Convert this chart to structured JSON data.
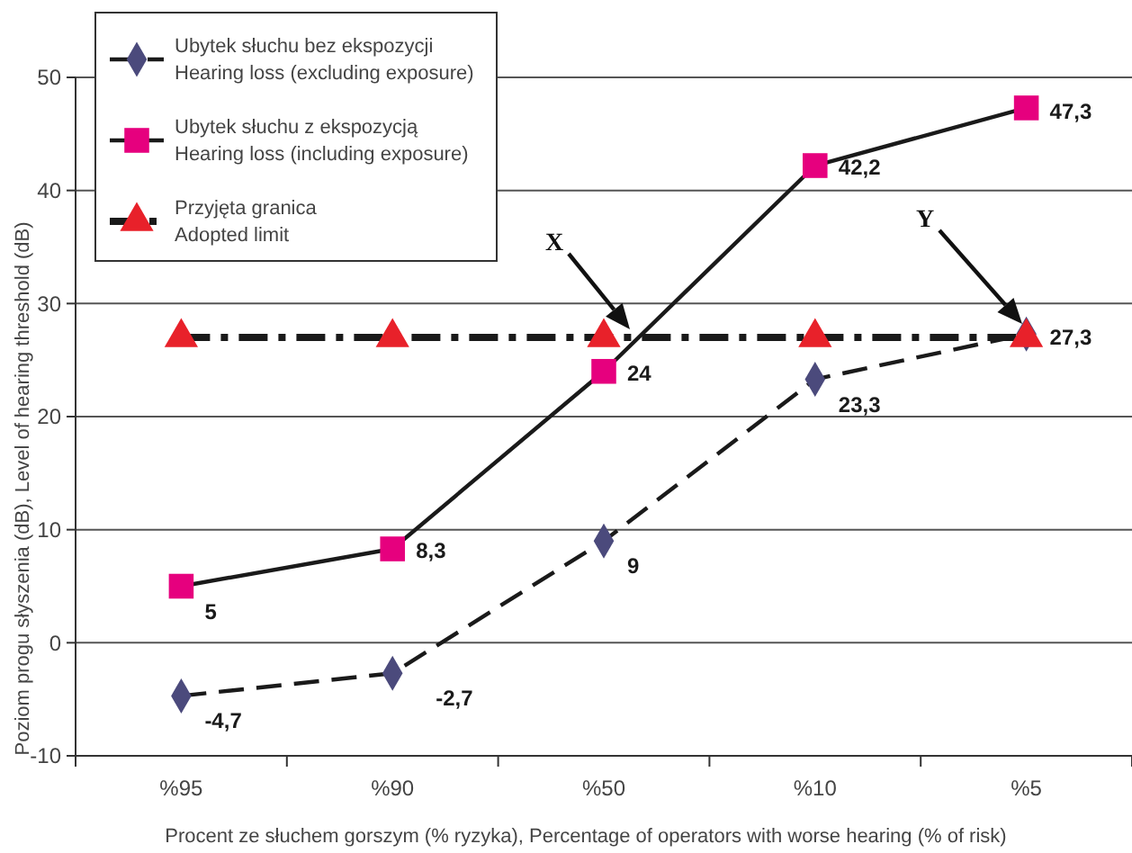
{
  "chart_data": {
    "type": "line",
    "xlabel": "Procent ze słuchem gorszym (% ryzyka), Percentage of operators with worse hearing (% of risk)",
    "ylabel": "Poziom progu słyszenia (dB), Level of hearing threshold (dB)",
    "categories": [
      "%95",
      "%90",
      "%50",
      "%10",
      "%5"
    ],
    "series": [
      {
        "name": "Ubytek słuchu bez ekspozycji\nHearing loss (excluding exposure)",
        "color": "#4b4a7c",
        "marker": "diamond",
        "line_style": "dashed",
        "values": [
          -4.7,
          -2.7,
          9,
          23.3,
          27.3
        ],
        "value_labels": [
          "-4,7",
          "-2,7",
          "9",
          "23,3",
          "27,3"
        ]
      },
      {
        "name": "Ubytek słuchu z ekspozycją\nHearing loss (including exposure)",
        "color": "#e6007e",
        "marker": "square",
        "line_style": "solid",
        "values": [
          5,
          8.3,
          24,
          42.2,
          47.3
        ],
        "value_labels": [
          "5",
          "8,3",
          "24",
          "42,2",
          "47,3"
        ]
      },
      {
        "name": "Przyjęta granica\nAdopted limit",
        "color": "#e8212a",
        "marker": "triangle",
        "line_style": "dotted",
        "values": [
          27,
          27,
          27,
          27,
          27
        ]
      }
    ],
    "ylim": [
      -10,
      50
    ],
    "yticks": [
      -10,
      0,
      10,
      20,
      30,
      40,
      50
    ],
    "grid": "y",
    "legend": "top left",
    "annotations": [
      "X",
      "Y"
    ]
  }
}
